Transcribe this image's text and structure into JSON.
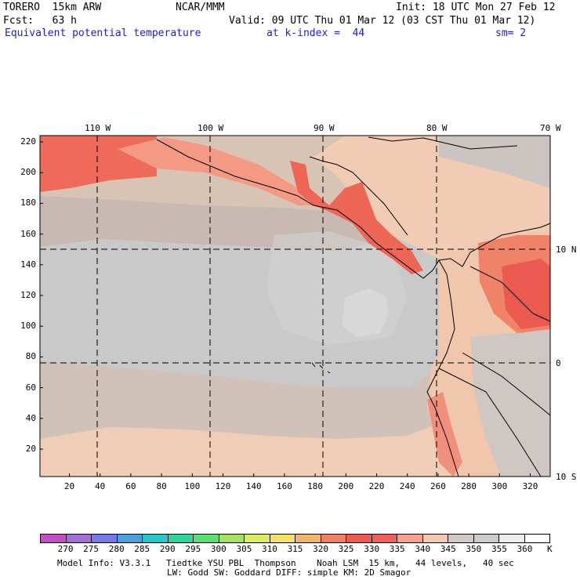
{
  "header": {
    "run": "TORERO  15km ARW",
    "center": "NCAR/MMM",
    "init": "Init: 18 UTC Mon 27 Feb 12",
    "fcst": "Fcst:   63 h",
    "valid": "Valid: 09 UTC Thu 01 Mar 12 (03 CST Thu 01 Mar 12)",
    "field": "Equivalent potential temperature",
    "level": "at k-index =  44",
    "smoothing": "sm= 2"
  },
  "map": {
    "lon_labels": [
      "110 W",
      "100 W",
      "90 W",
      "80 W",
      "70 W"
    ],
    "lat_labels": [
      "10 N",
      "0",
      "10 S"
    ],
    "y_ticks": [
      "220",
      "200",
      "180",
      "160",
      "140",
      "120",
      "100",
      "80",
      "60",
      "40",
      "20"
    ],
    "x_ticks": [
      "20",
      "40",
      "60",
      "80",
      "100",
      "120",
      "140",
      "160",
      "180",
      "200",
      "220",
      "240",
      "260",
      "280",
      "300",
      "320"
    ]
  },
  "colorbar": {
    "levels": [
      "270",
      "275",
      "280",
      "285",
      "290",
      "295",
      "300",
      "305",
      "310",
      "315",
      "320",
      "325",
      "330",
      "335",
      "340",
      "345",
      "350",
      "355",
      "360"
    ],
    "unit": "K",
    "colors": [
      "#c84cc8",
      "#a070d8",
      "#7878e6",
      "#4aa0dc",
      "#28c8c8",
      "#2ad89a",
      "#58e070",
      "#a4e45c",
      "#dcec60",
      "#f6e066",
      "#f4b46a",
      "#f08060",
      "#ee5a52",
      "#f06058",
      "#f8a08a",
      "#f2c8b0",
      "#d2c8c4",
      "#cccccc",
      "#ececec",
      "#ffffff"
    ]
  },
  "footer": {
    "line1": "Model Info: V3.3.1   Tiedtke YSU PBL  Thompson    Noah LSM  15 km,   44 levels,   40 sec",
    "line2": "LW: Godd SW: Goddard DIFF: simple KM: 2D Smagor"
  }
}
